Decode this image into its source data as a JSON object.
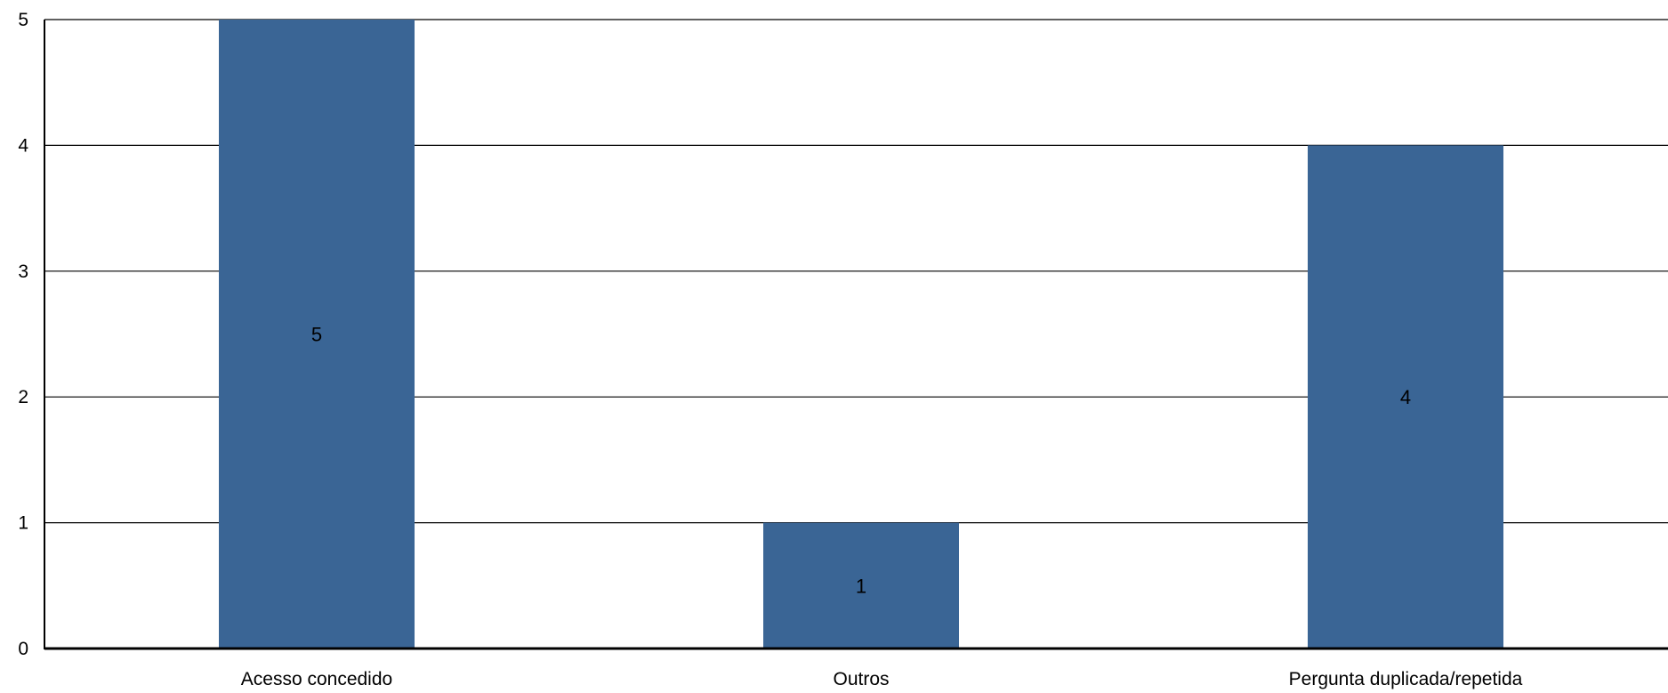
{
  "chart_data": {
    "type": "bar",
    "categories": [
      "Acesso concedido",
      "Outros",
      "Pergunta duplicada/repetida"
    ],
    "values": [
      5,
      1,
      4
    ],
    "title": "",
    "xlabel": "",
    "ylabel": "",
    "ylim": [
      0,
      5
    ],
    "yticks": [
      0,
      1,
      2,
      3,
      4,
      5
    ],
    "grid": true,
    "data_labels": true,
    "bar_color": "#3A6595",
    "gridline_color": "#000000"
  }
}
